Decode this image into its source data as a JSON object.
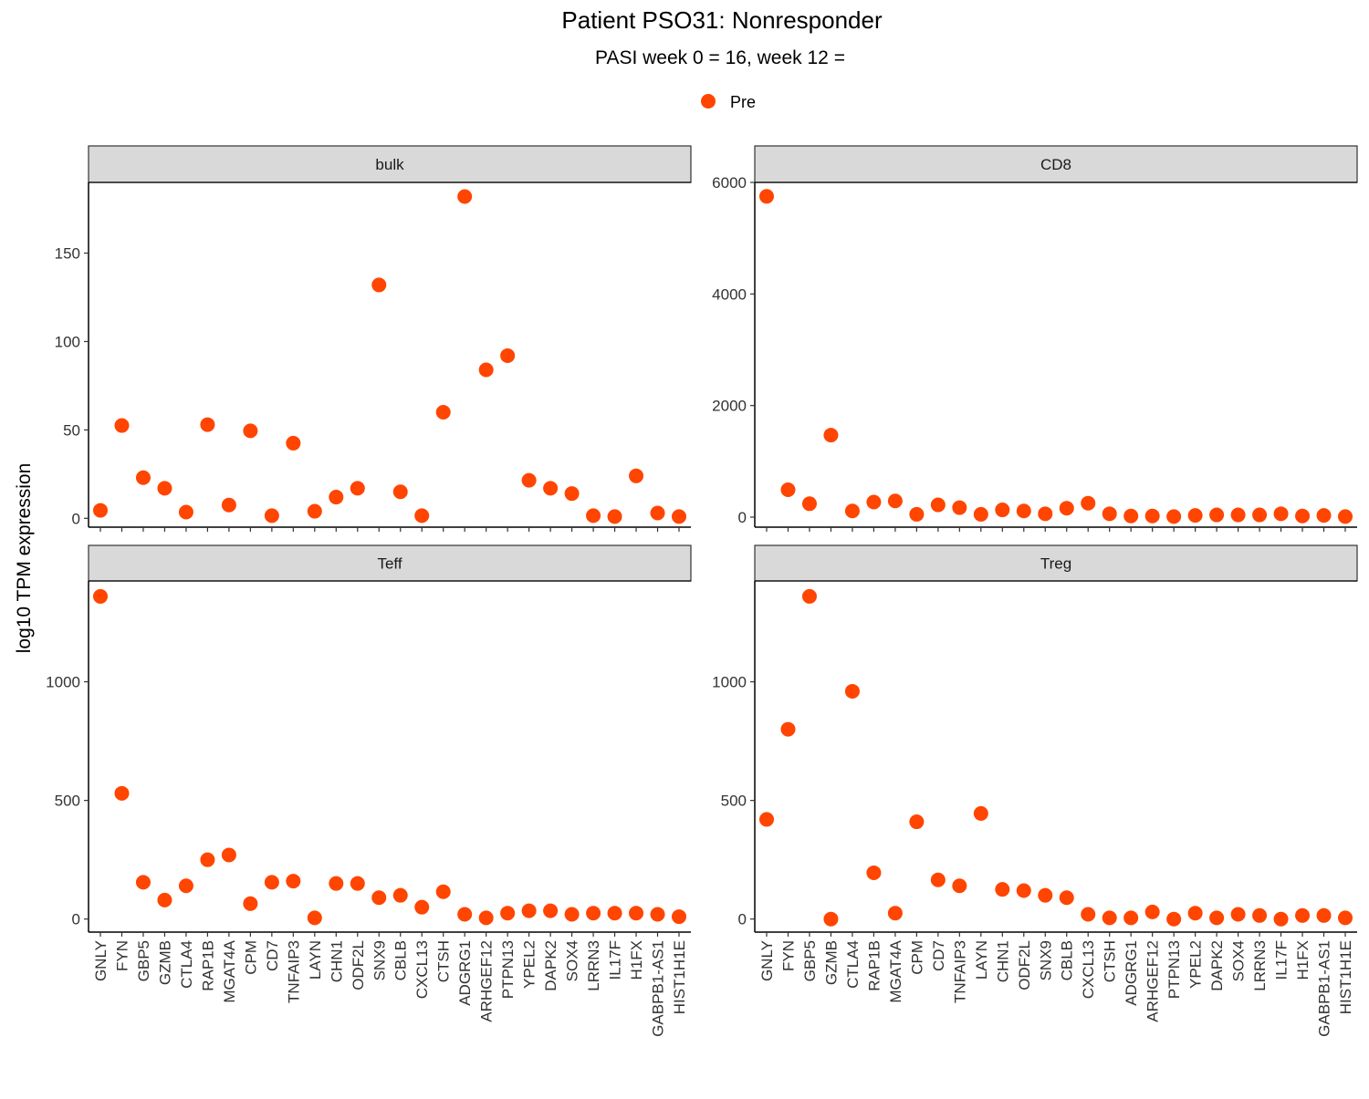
{
  "title": "Patient PSO31: Nonresponder",
  "subtitle": "PASI week 0 = 16, week 12 =",
  "ylabel": "log10 TPM expression",
  "legend": {
    "label": "Pre",
    "color": "#FF4500",
    "position": "top"
  },
  "chart_data": {
    "type": "scatter",
    "title": "Patient PSO31: Nonresponder",
    "subtitle": "PASI week 0 = 16, week 12 =",
    "ylabel": "log10 TPM expression",
    "grid": false,
    "legend_position": "top",
    "series_name": "Pre",
    "series_color": "#FF4500",
    "categories": [
      "GNLY",
      "FYN",
      "GBP5",
      "GZMB",
      "CTLA4",
      "RAP1B",
      "MGAT4A",
      "CPM",
      "CD7",
      "TNFAIP3",
      "LAYN",
      "CHN1",
      "ODF2L",
      "SNX9",
      "CBLB",
      "CXCL13",
      "CTSH",
      "ADGRG1",
      "ARHGEF12",
      "PTPN13",
      "YPEL2",
      "DAPK2",
      "SOX4",
      "LRRN3",
      "IL17F",
      "H1FX",
      "GABPB1-AS1",
      "HIST1H1E"
    ],
    "panels": [
      {
        "name": "bulk",
        "ylim": [
          -5,
          190
        ],
        "yticks": [
          0,
          50,
          100,
          150
        ],
        "values": [
          4.5,
          52.5,
          23,
          17,
          3.5,
          53,
          7.5,
          49.5,
          1.5,
          42.5,
          4,
          12,
          17,
          132,
          15,
          1.5,
          60,
          182,
          84,
          92,
          21.5,
          17,
          14,
          1.5,
          1,
          24,
          3,
          1
        ]
      },
      {
        "name": "CD8",
        "ylim": [
          -180,
          6000
        ],
        "yticks": [
          0,
          2000,
          4000,
          6000
        ],
        "values": [
          5750,
          490,
          240,
          1470,
          110,
          270,
          290,
          50,
          220,
          170,
          50,
          130,
          110,
          60,
          160,
          250,
          60,
          20,
          20,
          10,
          30,
          40,
          40,
          40,
          60,
          20,
          30,
          10
        ]
      },
      {
        "name": "Teff",
        "ylim": [
          -55,
          1425
        ],
        "yticks": [
          0,
          500,
          1000
        ],
        "values": [
          1360,
          530,
          155,
          80,
          140,
          250,
          270,
          65,
          155,
          160,
          5,
          150,
          150,
          90,
          100,
          50,
          115,
          20,
          5,
          25,
          35,
          35,
          20,
          25,
          25,
          25,
          20,
          10
        ]
      },
      {
        "name": "Treg",
        "ylim": [
          -55,
          1425
        ],
        "yticks": [
          0,
          500,
          1000
        ],
        "values": [
          420,
          800,
          1360,
          0,
          960,
          195,
          25,
          410,
          165,
          140,
          445,
          125,
          120,
          100,
          90,
          20,
          5,
          5,
          30,
          0,
          25,
          5,
          20,
          15,
          0,
          15,
          15,
          5
        ]
      }
    ]
  }
}
